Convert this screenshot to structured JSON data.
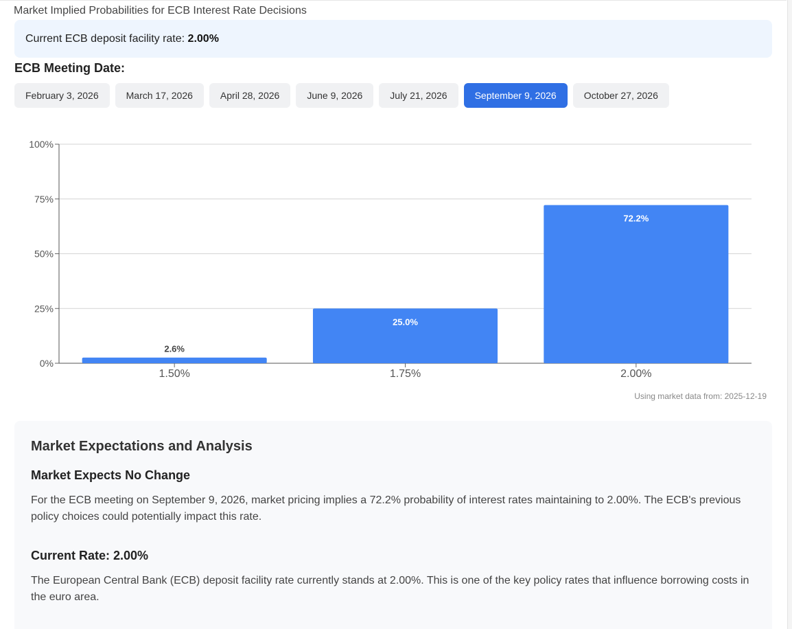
{
  "page": {
    "title": "Market Implied Probabilities for ECB Interest Rate Decisions"
  },
  "rate_banner": {
    "label": "Current ECB deposit facility rate: ",
    "value": "2.00%"
  },
  "meeting": {
    "heading": "ECB Meeting Date:",
    "dates": [
      {
        "label": "February 3, 2026",
        "active": false
      },
      {
        "label": "March 17, 2026",
        "active": false
      },
      {
        "label": "April 28, 2026",
        "active": false
      },
      {
        "label": "June 9, 2026",
        "active": false
      },
      {
        "label": "July 21, 2026",
        "active": false
      },
      {
        "label": "September 9, 2026",
        "active": true
      },
      {
        "label": "October 27, 2026",
        "active": false
      }
    ]
  },
  "chart_data": {
    "type": "bar",
    "categories": [
      "1.50%",
      "1.75%",
      "2.00%"
    ],
    "values": [
      2.6,
      25.0,
      72.2
    ],
    "value_labels": [
      "2.6%",
      "25.0%",
      "72.2%"
    ],
    "ylim": [
      0,
      100
    ],
    "yticks": [
      0,
      25,
      50,
      75,
      100
    ],
    "ytick_labels": [
      "0%",
      "25%",
      "50%",
      "75%",
      "100%"
    ],
    "title": "",
    "xlabel": "",
    "ylabel": "",
    "grid": true,
    "bar_color": "#4285f4"
  },
  "source_note": "Using market data from: 2025-12-19",
  "analysis": {
    "title": "Market Expectations and Analysis",
    "sections": [
      {
        "heading": "Market Expects No Change",
        "text": "For the ECB meeting on September 9, 2026, market pricing implies a 72.2% probability of interest rates maintaining to 2.00%. The ECB's previous policy choices could potentially impact this rate."
      },
      {
        "heading": "Current Rate: 2.00%",
        "text": "The European Central Bank (ECB) deposit facility rate currently stands at 2.00%. This is one of the key policy rates that influence borrowing costs in the euro area."
      }
    ]
  },
  "colors": {
    "accent": "#2f6fe4",
    "banner_bg": "#eef5fe",
    "tab_bg": "#f0f1f3",
    "panel_bg": "#f8f9fb"
  }
}
